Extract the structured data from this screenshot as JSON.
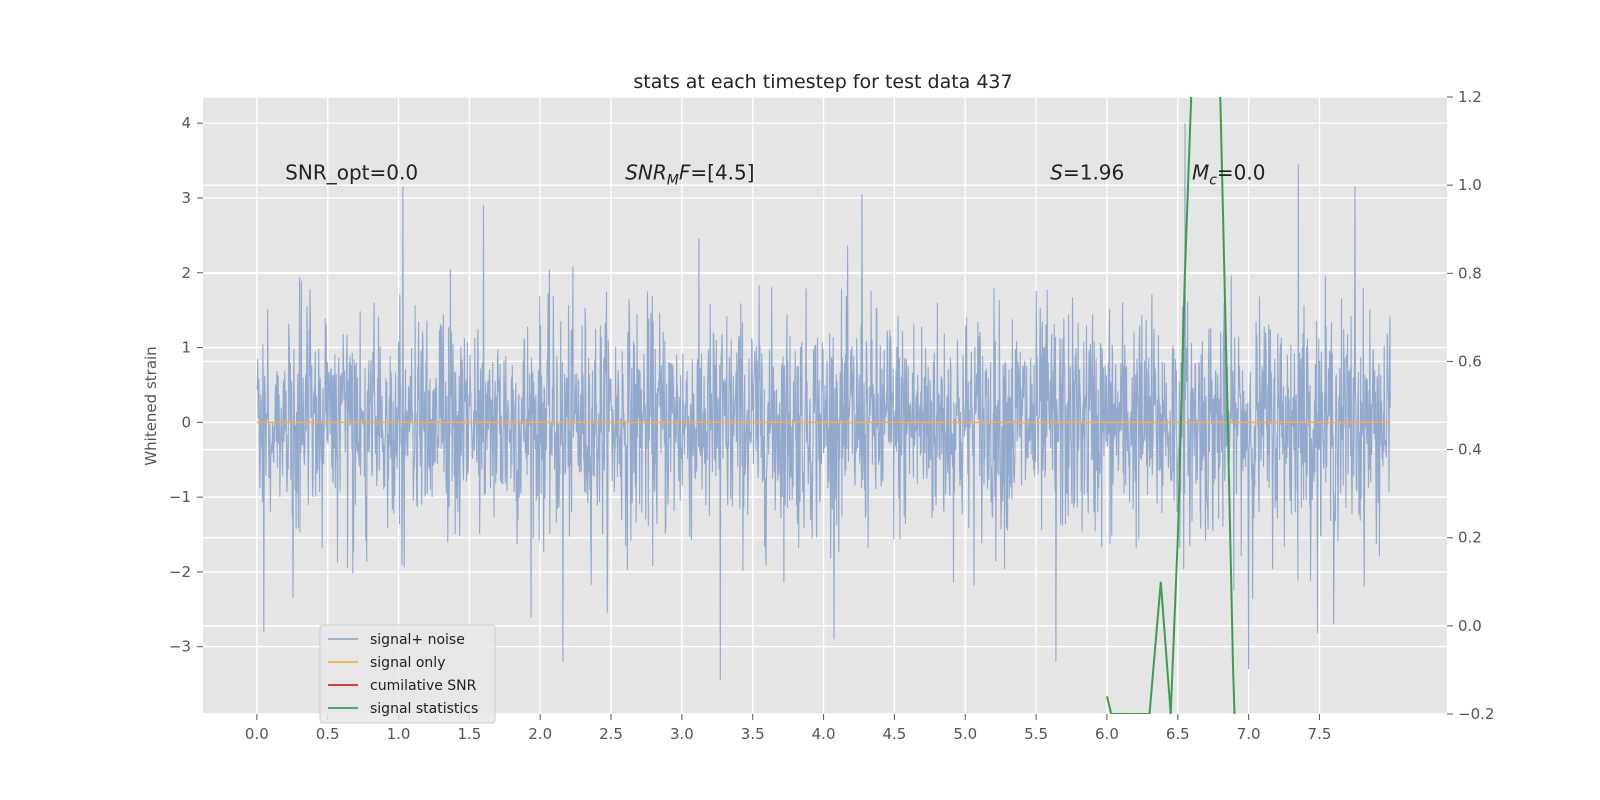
{
  "chart_data": {
    "type": "line",
    "title": "stats at each timestep for test data 437",
    "ylabel": "Whitened strain",
    "xlabel": "",
    "xlim": [
      -0.38,
      8.4
    ],
    "ylim": [
      -3.9,
      4.35
    ],
    "ylim_right": [
      -0.2,
      1.2
    ],
    "x_ticks": [
      "0.0",
      "0.5",
      "1.0",
      "1.5",
      "2.0",
      "2.5",
      "3.0",
      "3.5",
      "4.0",
      "4.5",
      "5.0",
      "5.5",
      "6.0",
      "6.5",
      "7.0",
      "7.5"
    ],
    "x_tick_values": [
      0,
      0.5,
      1,
      1.5,
      2,
      2.5,
      3,
      3.5,
      4,
      4.5,
      5,
      5.5,
      6,
      6.5,
      7,
      7.5
    ],
    "y_ticks": [
      "4",
      "3",
      "2",
      "1",
      "0",
      "−1",
      "−2",
      "−3"
    ],
    "y_tick_values": [
      4,
      3,
      2,
      1,
      0,
      -1,
      -2,
      -3
    ],
    "y2_ticks": [
      "1.2",
      "1.0",
      "0.8",
      "0.6",
      "0.4",
      "0.2",
      "0.0",
      "−0.2"
    ],
    "y2_tick_values": [
      1.2,
      1.0,
      0.8,
      0.6,
      0.4,
      0.2,
      0.0,
      -0.2
    ],
    "grid": true,
    "legend_position": "lower-left",
    "annotations": [
      {
        "text": "SNR_opt=0.0",
        "x": 0.2,
        "y": 3.25
      },
      {
        "text": "SNR",
        "sub": "M",
        "tail": "F=[4.5]",
        "x": 2.6,
        "y": 3.25,
        "italic_prefix": true
      },
      {
        "text": "S",
        "tail": "=1.96",
        "x": 5.6,
        "y": 3.25,
        "italic_prefix": true
      },
      {
        "text": "M",
        "sub": "c",
        "tail": "=0.0",
        "x": 6.6,
        "y": 3.25,
        "italic_prefix": true
      }
    ],
    "series": [
      {
        "name": "signal+ noise",
        "color": "#92a8cd",
        "axis": "left",
        "x_range": [
          0,
          8
        ],
        "noise_sigma": 0.75,
        "spikes": [
          {
            "x": 0.05,
            "y": -2.8
          },
          {
            "x": 1.03,
            "y": 3.15
          },
          {
            "x": 1.6,
            "y": 2.9
          },
          {
            "x": 2.16,
            "y": -3.2
          },
          {
            "x": 3.27,
            "y": -3.45
          },
          {
            "x": 4.27,
            "y": 3.05
          },
          {
            "x": 5.64,
            "y": 3.55
          },
          {
            "x": 5.64,
            "y": -3.2
          },
          {
            "x": 6.55,
            "y": 4.0
          },
          {
            "x": 7.0,
            "y": -3.3
          },
          {
            "x": 7.35,
            "y": 3.45
          },
          {
            "x": 7.6,
            "y": -2.7
          },
          {
            "x": 7.75,
            "y": 3.15
          }
        ]
      },
      {
        "name": "signal only",
        "color": "#f0b04f",
        "axis": "left",
        "x": [
          0,
          8
        ],
        "values": [
          0,
          0
        ]
      },
      {
        "name": "cumilative SNR",
        "color": "#d62728",
        "axis": "right",
        "x": [],
        "values": []
      },
      {
        "name": "signal statistics",
        "color": "#3f9c4f",
        "axis": "right",
        "x": [
          6.0,
          6.03,
          6.3,
          6.38,
          6.45,
          6.5,
          6.55,
          6.6,
          6.65,
          6.7,
          6.75,
          6.8,
          6.85,
          6.89,
          6.9
        ],
        "values": [
          -0.16,
          -0.2,
          -0.2,
          0.1,
          -0.2,
          0.2,
          0.8,
          1.25,
          1.35,
          1.35,
          1.3,
          1.2,
          0.5,
          -0.1,
          -0.2
        ]
      }
    ],
    "colors": {
      "plot_bg": "#e5e5e5",
      "grid": "#ffffff"
    }
  }
}
